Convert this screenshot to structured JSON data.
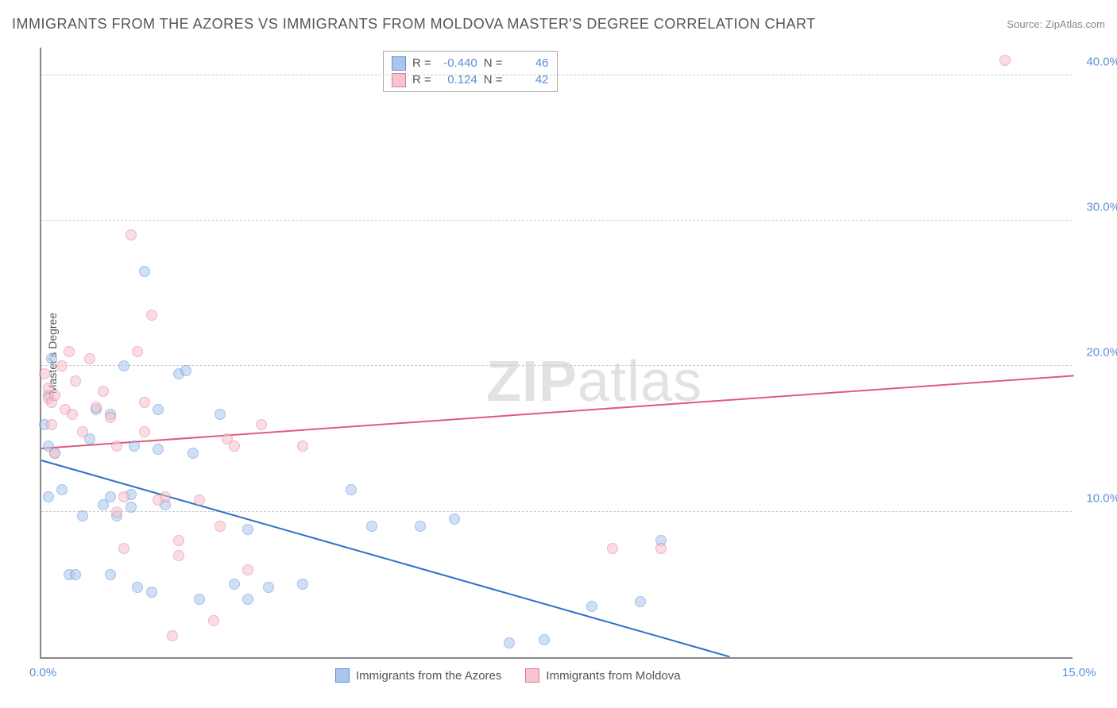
{
  "title": "IMMIGRANTS FROM THE AZORES VS IMMIGRANTS FROM MOLDOVA MASTER'S DEGREE CORRELATION CHART",
  "source_label": "Source:",
  "source_name": "ZipAtlas.com",
  "watermark_a": "ZIP",
  "watermark_b": "atlas",
  "y_axis_title": "Master's Degree",
  "chart": {
    "type": "scatter",
    "xlim": [
      0,
      15
    ],
    "ylim": [
      0,
      42
    ],
    "x_ticks": [
      {
        "v": 0,
        "l": "0.0%"
      },
      {
        "v": 15,
        "l": "15.0%"
      }
    ],
    "y_ticks": [
      {
        "v": 10,
        "l": "10.0%"
      },
      {
        "v": 20,
        "l": "20.0%"
      },
      {
        "v": 30,
        "l": "30.0%"
      },
      {
        "v": 40,
        "l": "40.0%"
      }
    ],
    "grid_color": "#cccccc",
    "background_color": "#ffffff",
    "marker_radius": 7,
    "marker_opacity": 0.55,
    "series": [
      {
        "name": "Immigrants from the Azores",
        "fill": "#a9c7ec",
        "stroke": "#5b8fd6",
        "line_color": "#2f6fc7",
        "r": "-0.440",
        "n": "46",
        "trend": {
          "x1": 0,
          "y1": 13.5,
          "x2": 10,
          "y2": 0
        },
        "points": [
          [
            0.05,
            16.0
          ],
          [
            0.1,
            18.0
          ],
          [
            0.1,
            14.5
          ],
          [
            0.1,
            11.0
          ],
          [
            0.15,
            20.5
          ],
          [
            0.2,
            14.0
          ],
          [
            0.3,
            11.5
          ],
          [
            0.4,
            5.7
          ],
          [
            0.5,
            5.7
          ],
          [
            0.6,
            9.7
          ],
          [
            0.7,
            15.0
          ],
          [
            0.8,
            17.0
          ],
          [
            0.9,
            10.5
          ],
          [
            1.0,
            16.7
          ],
          [
            1.0,
            11.0
          ],
          [
            1.0,
            5.7
          ],
          [
            1.1,
            9.7
          ],
          [
            1.2,
            20.0
          ],
          [
            1.3,
            10.3
          ],
          [
            1.3,
            11.2
          ],
          [
            1.35,
            14.5
          ],
          [
            1.4,
            4.8
          ],
          [
            1.5,
            26.5
          ],
          [
            1.6,
            4.5
          ],
          [
            1.7,
            17.0
          ],
          [
            1.7,
            14.3
          ],
          [
            1.8,
            10.5
          ],
          [
            2.0,
            19.5
          ],
          [
            2.1,
            19.7
          ],
          [
            2.2,
            14.0
          ],
          [
            2.3,
            4.0
          ],
          [
            2.6,
            16.7
          ],
          [
            2.8,
            5.0
          ],
          [
            3.0,
            4.0
          ],
          [
            3.0,
            8.8
          ],
          [
            3.3,
            4.8
          ],
          [
            3.8,
            5.0
          ],
          [
            4.5,
            11.5
          ],
          [
            4.8,
            9.0
          ],
          [
            5.5,
            9.0
          ],
          [
            6.0,
            9.5
          ],
          [
            6.8,
            1.0
          ],
          [
            8.0,
            3.5
          ],
          [
            8.7,
            3.8
          ],
          [
            9.0,
            8.0
          ],
          [
            7.3,
            1.2
          ]
        ]
      },
      {
        "name": "Immigrants from Moldova",
        "fill": "#f6c3cf",
        "stroke": "#e47893",
        "line_color": "#e05a7d",
        "r": "0.124",
        "n": "42",
        "trend": {
          "x1": 0,
          "y1": 14.3,
          "x2": 15,
          "y2": 19.3
        },
        "points": [
          [
            0.05,
            19.5
          ],
          [
            0.1,
            18.5
          ],
          [
            0.1,
            17.8
          ],
          [
            0.15,
            17.5
          ],
          [
            0.15,
            16.0
          ],
          [
            0.2,
            18.0
          ],
          [
            0.2,
            14.0
          ],
          [
            0.3,
            20.0
          ],
          [
            0.35,
            17.0
          ],
          [
            0.4,
            21.0
          ],
          [
            0.45,
            16.7
          ],
          [
            0.5,
            19.0
          ],
          [
            0.6,
            15.5
          ],
          [
            0.7,
            20.5
          ],
          [
            0.8,
            17.2
          ],
          [
            0.9,
            18.3
          ],
          [
            1.0,
            16.5
          ],
          [
            1.1,
            14.5
          ],
          [
            1.1,
            10.0
          ],
          [
            1.2,
            11.0
          ],
          [
            1.2,
            7.5
          ],
          [
            1.3,
            29.0
          ],
          [
            1.4,
            21.0
          ],
          [
            1.5,
            17.5
          ],
          [
            1.5,
            15.5
          ],
          [
            1.6,
            23.5
          ],
          [
            1.7,
            10.8
          ],
          [
            1.8,
            11.0
          ],
          [
            1.9,
            1.5
          ],
          [
            2.0,
            8.0
          ],
          [
            2.0,
            7.0
          ],
          [
            2.3,
            10.8
          ],
          [
            2.5,
            2.5
          ],
          [
            2.6,
            9.0
          ],
          [
            2.7,
            15.0
          ],
          [
            2.8,
            14.5
          ],
          [
            3.0,
            6.0
          ],
          [
            3.2,
            16.0
          ],
          [
            3.8,
            14.5
          ],
          [
            8.3,
            7.5
          ],
          [
            9.0,
            7.5
          ],
          [
            14.0,
            41.0
          ]
        ]
      }
    ]
  },
  "legend_top_labels": {
    "r": "R =",
    "n": "N ="
  }
}
